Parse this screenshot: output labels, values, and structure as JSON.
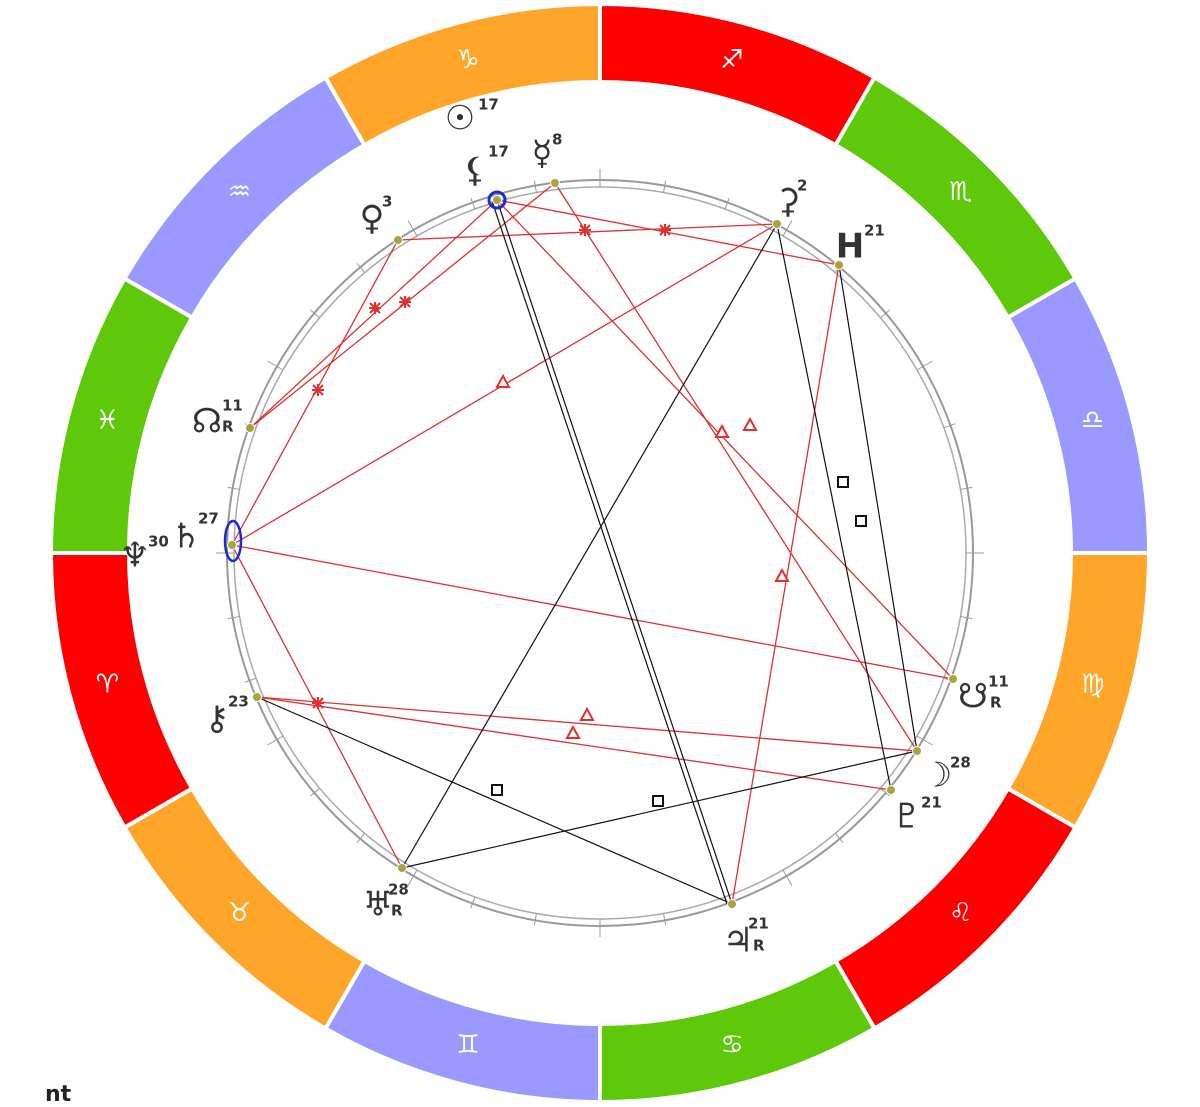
{
  "zodiac_signs": [
    "♐",
    "♏",
    "♎",
    "♍",
    "♌",
    "♋",
    "♊",
    "♉",
    "♈",
    "♓",
    "♒",
    "♑"
  ],
  "planets": [
    {
      "glyph": "☉",
      "degree": 17
    },
    {
      "glyph": "⚸",
      "degree": 17
    },
    {
      "glyph": "☿",
      "degree": 8
    },
    {
      "glyph": "♀",
      "degree": 3
    },
    {
      "glyph": "⚳",
      "degree": 2
    },
    {
      "glyph": "H",
      "degree": 21
    },
    {
      "glyph": "☊",
      "degree": 11,
      "retrograde": "R"
    },
    {
      "glyph": "♄",
      "degree": 27
    },
    {
      "glyph": "♆",
      "degree": 30
    },
    {
      "glyph": "⚷",
      "degree": 23
    },
    {
      "glyph": "☋",
      "degree": 11,
      "retrograde": "R"
    },
    {
      "glyph": "☽",
      "degree": 28
    },
    {
      "glyph": "♇",
      "degree": 21
    },
    {
      "glyph": "♃",
      "degree": 21,
      "retrograde": "R"
    },
    {
      "glyph": "♅",
      "degree": 28,
      "retrograde": "R"
    }
  ],
  "footer": "nt"
}
